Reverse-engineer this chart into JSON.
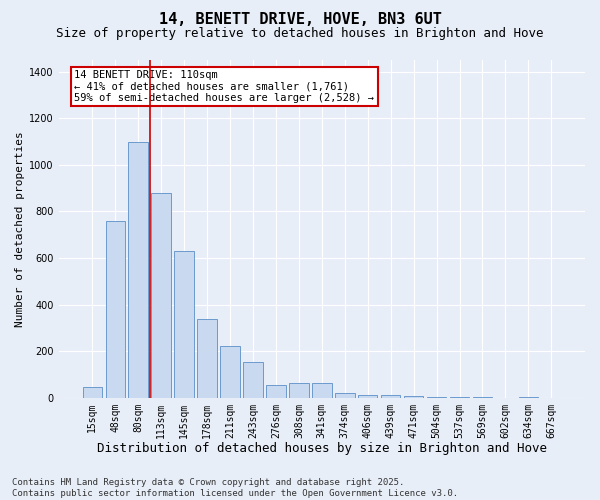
{
  "title": "14, BENETT DRIVE, HOVE, BN3 6UT",
  "subtitle": "Size of property relative to detached houses in Brighton and Hove",
  "xlabel": "Distribution of detached houses by size in Brighton and Hove",
  "ylabel": "Number of detached properties",
  "categories": [
    "15sqm",
    "48sqm",
    "80sqm",
    "113sqm",
    "145sqm",
    "178sqm",
    "211sqm",
    "243sqm",
    "276sqm",
    "308sqm",
    "341sqm",
    "374sqm",
    "406sqm",
    "439sqm",
    "471sqm",
    "504sqm",
    "537sqm",
    "569sqm",
    "602sqm",
    "634sqm",
    "667sqm"
  ],
  "values": [
    48,
    760,
    1100,
    880,
    630,
    340,
    220,
    155,
    55,
    62,
    65,
    20,
    12,
    10,
    6,
    5,
    2,
    1,
    0,
    4,
    0
  ],
  "bar_color": "#c9d9f0",
  "bar_edge_color": "#5b8fc9",
  "vline_color": "#cc0000",
  "annotation_text": "14 BENETT DRIVE: 110sqm\n← 41% of detached houses are smaller (1,761)\n59% of semi-detached houses are larger (2,528) →",
  "annotation_box_color": "#cc0000",
  "ylim": [
    0,
    1450
  ],
  "yticks": [
    0,
    200,
    400,
    600,
    800,
    1000,
    1200,
    1400
  ],
  "footer": "Contains HM Land Registry data © Crown copyright and database right 2025.\nContains public sector information licensed under the Open Government Licence v3.0.",
  "bg_color": "#e8eef8",
  "plot_bg_color": "#e8eef8",
  "title_fontsize": 11,
  "subtitle_fontsize": 9,
  "xlabel_fontsize": 9,
  "ylabel_fontsize": 8,
  "tick_fontsize": 7,
  "annotation_fontsize": 7.5,
  "footer_fontsize": 6.5
}
